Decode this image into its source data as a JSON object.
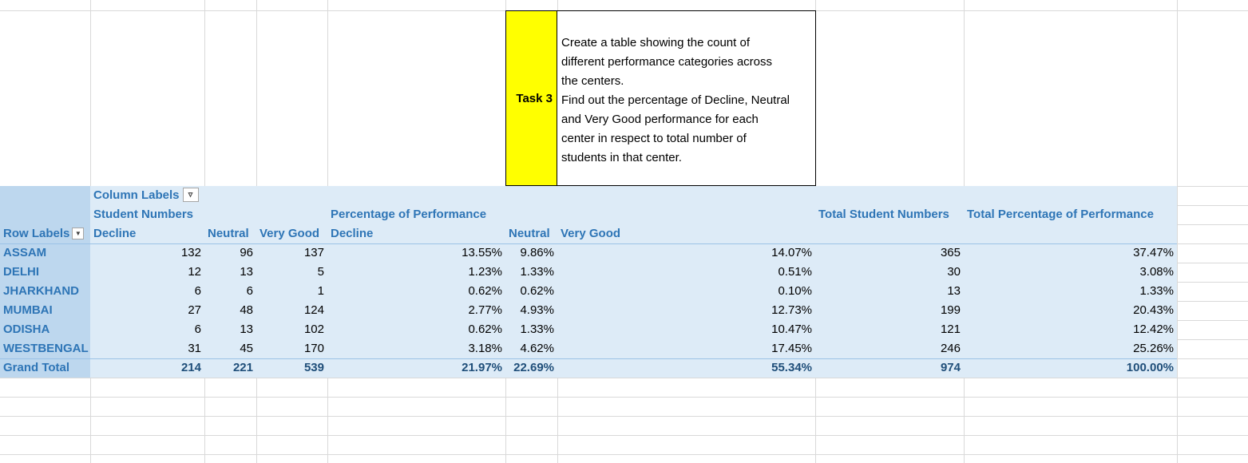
{
  "task": {
    "label": "Task 3",
    "lines": [
      "Create a table showing the count of",
      "different performance categories across",
      "the centers.",
      "Find out the percentage of Decline, Neutral",
      "and Very Good performance  for each",
      "center in respect to total number of",
      "students in that center."
    ]
  },
  "pivot": {
    "column_labels": "Column Labels",
    "row_labels": "Row Labels",
    "group_student_numbers": "Student Numbers",
    "group_percentage": "Percentage of Performance",
    "total_student_numbers": "Total Student Numbers",
    "total_percentage": "Total Percentage of Performance",
    "sub_headers": [
      "Decline",
      "Neutral",
      "Very Good",
      "Decline",
      "Neutral",
      "Very Good"
    ],
    "rows": [
      {
        "label": "ASSAM",
        "values": [
          "132",
          "96",
          "137",
          "13.55%",
          "9.86%",
          "14.07%",
          "365",
          "37.47%"
        ]
      },
      {
        "label": "DELHI",
        "values": [
          "12",
          "13",
          "5",
          "1.23%",
          "1.33%",
          "0.51%",
          "30",
          "3.08%"
        ]
      },
      {
        "label": "JHARKHAND",
        "values": [
          "6",
          "6",
          "1",
          "0.62%",
          "0.62%",
          "0.10%",
          "13",
          "1.33%"
        ]
      },
      {
        "label": "MUMBAI",
        "values": [
          "27",
          "48",
          "124",
          "2.77%",
          "4.93%",
          "12.73%",
          "199",
          "20.43%"
        ]
      },
      {
        "label": "ODISHA",
        "values": [
          "6",
          "13",
          "102",
          "0.62%",
          "1.33%",
          "10.47%",
          "121",
          "12.42%"
        ]
      },
      {
        "label": "WESTBENGAL",
        "values": [
          "31",
          "45",
          "170",
          "3.18%",
          "4.62%",
          "17.45%",
          "246",
          "25.26%"
        ]
      }
    ],
    "grand_total": {
      "label": "Grand Total",
      "values": [
        "214",
        "221",
        "539",
        "21.97%",
        "22.69%",
        "55.34%",
        "974",
        "100.00%"
      ]
    }
  },
  "icons": {
    "filter": "filter-icon",
    "dropdown": "chevron-down-icon"
  },
  "colors": {
    "task_highlight": "#ffff00",
    "pivot_body": "#ddebf7",
    "pivot_row_header": "#bdd7ee",
    "header_text": "#2e75b6"
  }
}
